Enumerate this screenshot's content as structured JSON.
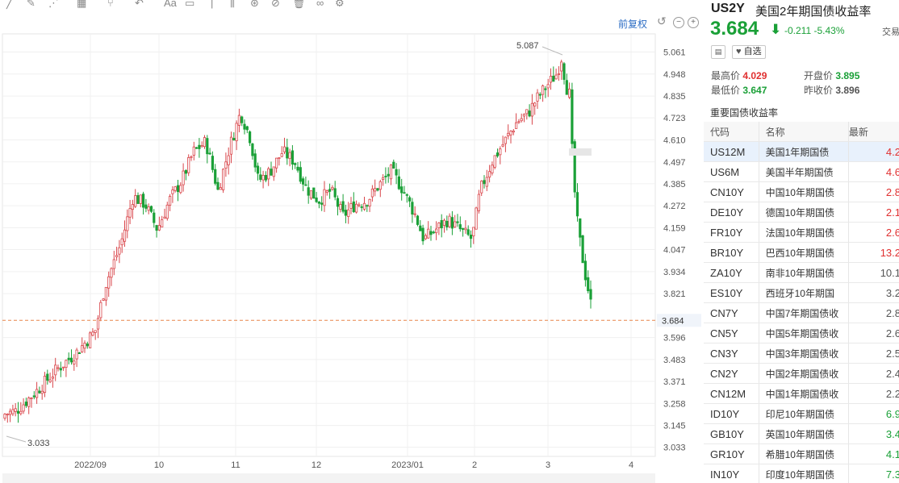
{
  "chart_panel": {
    "restore_label": "前复权",
    "controls": [
      "reset-icon",
      "zoom-out-icon",
      "zoom-in-icon"
    ],
    "toolbar_icons": [
      "line-tool-icon",
      "brush-icon",
      "pattern-icon",
      "measure-icon",
      "fork-icon",
      "arrow-tool-icon",
      "text-tool-icon",
      "comment-icon",
      "slash-icon",
      "parallel-icon",
      "gann-icon",
      "forbid-icon",
      "trash-icon",
      "link-icon",
      "settings-icon"
    ],
    "colors": {
      "up": "#d9464b",
      "down": "#1aa037",
      "last_price_line": "#e8864a",
      "last_price_bg": "#f0f4fa"
    }
  },
  "chart_data": {
    "type": "candlestick",
    "y_ticks": [
      "5.061",
      "4.948",
      "4.835",
      "4.723",
      "4.610",
      "4.497",
      "4.385",
      "4.272",
      "4.159",
      "4.047",
      "3.934",
      "3.821",
      "3.596",
      "3.483",
      "3.371",
      "3.258",
      "3.145",
      "3.033"
    ],
    "x_ticks": [
      "2022/09",
      "10",
      "11",
      "12",
      "2023/01",
      "2",
      "3",
      "4"
    ],
    "ylim": [
      2.986,
      5.154
    ],
    "max_label": "5.087",
    "min_label": "3.033",
    "last_value": "3.684",
    "last": 3.684
  },
  "quote": {
    "symbol": "US2Y",
    "name": "美国2年期国债收益率",
    "price": "3.684",
    "change": "-0.211",
    "change_pct": "-5.43%",
    "trade_label": "交易",
    "note_button": "",
    "watch_button": "自选",
    "high_label": "最高价",
    "high": "4.029",
    "open_label": "开盘价",
    "open": "3.895",
    "low_label": "最低价",
    "low": "3.647",
    "prev_close_label": "昨收价",
    "prev_close": "3.896"
  },
  "bond_table": {
    "title": "重要国债收益率",
    "headers": {
      "code": "代码",
      "name": "名称",
      "latest": "最新"
    },
    "rows": [
      {
        "code": "US12M",
        "name": "美国1年期国债",
        "value": "4.2"
      },
      {
        "code": "US6M",
        "name": "美国半年期国债",
        "value": "4.6"
      },
      {
        "code": "CN10Y",
        "name": "中国10年期国债",
        "value": "2.8"
      },
      {
        "code": "DE10Y",
        "name": "德国10年期国债",
        "value": "2.1"
      },
      {
        "code": "FR10Y",
        "name": "法国10年期国债",
        "value": "2.6"
      },
      {
        "code": "BR10Y",
        "name": "巴西10年期国债",
        "value": "13.2"
      },
      {
        "code": "ZA10Y",
        "name": "南非10年期国债",
        "value": "10.1"
      },
      {
        "code": "ES10Y",
        "name": "西班牙10年期国",
        "value": "3.2"
      },
      {
        "code": "CN7Y",
        "name": "中国7年期国债收",
        "value": "2.8"
      },
      {
        "code": "CN5Y",
        "name": "中国5年期国债收",
        "value": "2.6"
      },
      {
        "code": "CN3Y",
        "name": "中国3年期国债收",
        "value": "2.5"
      },
      {
        "code": "CN2Y",
        "name": "中国2年期国债收",
        "value": "2.4"
      },
      {
        "code": "CN12M",
        "name": "中国1年期国债收",
        "value": "2.2"
      },
      {
        "code": "ID10Y",
        "name": "印尼10年期国债",
        "value": "6.9"
      },
      {
        "code": "GB10Y",
        "name": "英国10年期国债",
        "value": "3.4"
      },
      {
        "code": "GR10Y",
        "name": "希腊10年期国债",
        "value": "4.1"
      },
      {
        "code": "IN10Y",
        "name": "印度10年期国债",
        "value": "7.3"
      }
    ],
    "row_colors": [
      "#e03030",
      "#e03030",
      "#e03030",
      "#e03030",
      "#e03030",
      "#e03030",
      "#555555",
      "#555555",
      "#555555",
      "#555555",
      "#555555",
      "#555555",
      "#555555",
      "#1aa037",
      "#1aa037",
      "#1aa037",
      "#1aa037"
    ]
  }
}
